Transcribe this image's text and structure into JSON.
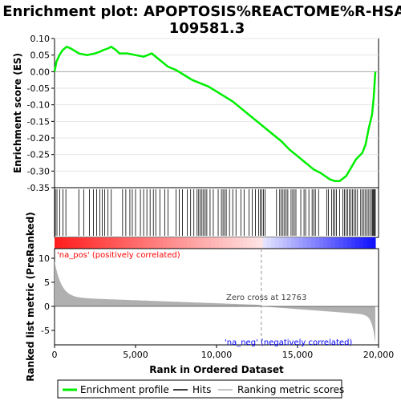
{
  "chart_data": {
    "type": "line",
    "title": "Enrichment plot: APOPTOSIS%REACTOME%R-HSA-",
    "title_line2": "109581.3",
    "es_panel": {
      "ylabel": "Enrichment score (ES)",
      "ylim": [
        -0.35,
        0.1
      ],
      "yticks": [
        "0.10",
        "0.05",
        "0.00",
        "-0.05",
        "-0.10",
        "-0.15",
        "-0.20",
        "-0.25",
        "-0.30",
        "-0.35"
      ],
      "ytick_values": [
        0.1,
        0.05,
        0.0,
        -0.05,
        -0.1,
        -0.15,
        -0.2,
        -0.25,
        -0.3,
        -0.35
      ],
      "series": [
        {
          "name": "Enrichment profile",
          "color": "#00ee00",
          "x": [
            0,
            120,
            300,
            500,
            750,
            1000,
            1500,
            2000,
            2500,
            2800,
            3000,
            3300,
            3500,
            3800,
            4000,
            4500,
            5000,
            5500,
            6000,
            6500,
            7000,
            7500,
            8000,
            8500,
            9000,
            9500,
            10000,
            10500,
            11000,
            11500,
            12000,
            12500,
            13000,
            13500,
            14000,
            14500,
            15000,
            15500,
            16000,
            16400,
            16700,
            17000,
            17300,
            17600,
            18000,
            18300,
            18600,
            19000,
            19200,
            19400,
            19600,
            19700,
            19800
          ],
          "y": [
            0.0,
            0.03,
            0.05,
            0.065,
            0.075,
            0.07,
            0.055,
            0.05,
            0.055,
            0.06,
            0.065,
            0.07,
            0.075,
            0.065,
            0.055,
            0.055,
            0.05,
            0.045,
            0.055,
            0.035,
            0.015,
            0.005,
            -0.01,
            -0.025,
            -0.035,
            -0.045,
            -0.06,
            -0.075,
            -0.09,
            -0.11,
            -0.13,
            -0.15,
            -0.17,
            -0.19,
            -0.21,
            -0.235,
            -0.255,
            -0.275,
            -0.295,
            -0.305,
            -0.315,
            -0.325,
            -0.33,
            -0.33,
            -0.315,
            -0.29,
            -0.265,
            -0.245,
            -0.22,
            -0.17,
            -0.13,
            -0.08,
            0.0
          ]
        }
      ]
    },
    "hits_panel": {
      "hit_positions": [
        50,
        150,
        320,
        520,
        700,
        1500,
        1800,
        2150,
        2400,
        2600,
        2800,
        2950,
        3100,
        3300,
        3500,
        4200,
        4400,
        4650,
        4800,
        5000,
        5300,
        5500,
        5700,
        5900,
        6100,
        6250,
        6500,
        6800,
        7000,
        7500,
        7700,
        7900,
        8200,
        8400,
        8600,
        8800,
        8900,
        9000,
        9100,
        9200,
        9300,
        9400,
        9600,
        9800,
        10100,
        10300,
        10400,
        10500,
        10600,
        10800,
        11000,
        11200,
        11500,
        11700,
        12000,
        12200,
        12400,
        12600,
        12700,
        12800,
        12900,
        13000,
        13700,
        13900,
        14000,
        14100,
        14200,
        14300,
        14400,
        14600,
        14700,
        14800,
        14900,
        15200,
        15400,
        15500,
        15700,
        15900,
        16000,
        16100,
        16300,
        16800,
        16900,
        17100,
        17200,
        17300,
        17400,
        17600,
        17800,
        17900,
        18000,
        18100,
        18200,
        18300,
        18400,
        18500,
        18600,
        18700,
        18900,
        19000,
        19100,
        19200,
        19300,
        19400,
        19500,
        19600,
        19650,
        19700,
        19750,
        19800
      ]
    },
    "rank_panel": {
      "ylabel": "Ranked list metric (PreRanked)",
      "ylim": [
        -8,
        12
      ],
      "yticks": [
        "10",
        "5",
        "0",
        "-5"
      ],
      "ytick_values": [
        10,
        5,
        0,
        -5
      ],
      "pos_label": "'na_pos' (positively correlated)",
      "neg_label": "'na_neg' (negatively correlated)",
      "zero_cross_label": "Zero cross at 12763",
      "zero_cross": 12763,
      "fill_color": "#b0b0b0",
      "pos_color": "#ff0000",
      "neg_color": "#0000ff"
    },
    "xlabel": "Rank in Ordered Dataset",
    "xlim": [
      0,
      20000
    ],
    "xticks": [
      "0",
      "5,000",
      "10,000",
      "15,000",
      "20,000"
    ],
    "xtick_values": [
      0,
      5000,
      10000,
      15000,
      20000
    ],
    "n_genes": 19800,
    "legend": {
      "position": "bottom",
      "items": [
        {
          "label": "Enrichment profile",
          "color": "#00ee00"
        },
        {
          "label": "Hits",
          "color": "#000000"
        },
        {
          "label": "Ranking metric scores",
          "color": "#b0b0b0"
        }
      ]
    }
  }
}
